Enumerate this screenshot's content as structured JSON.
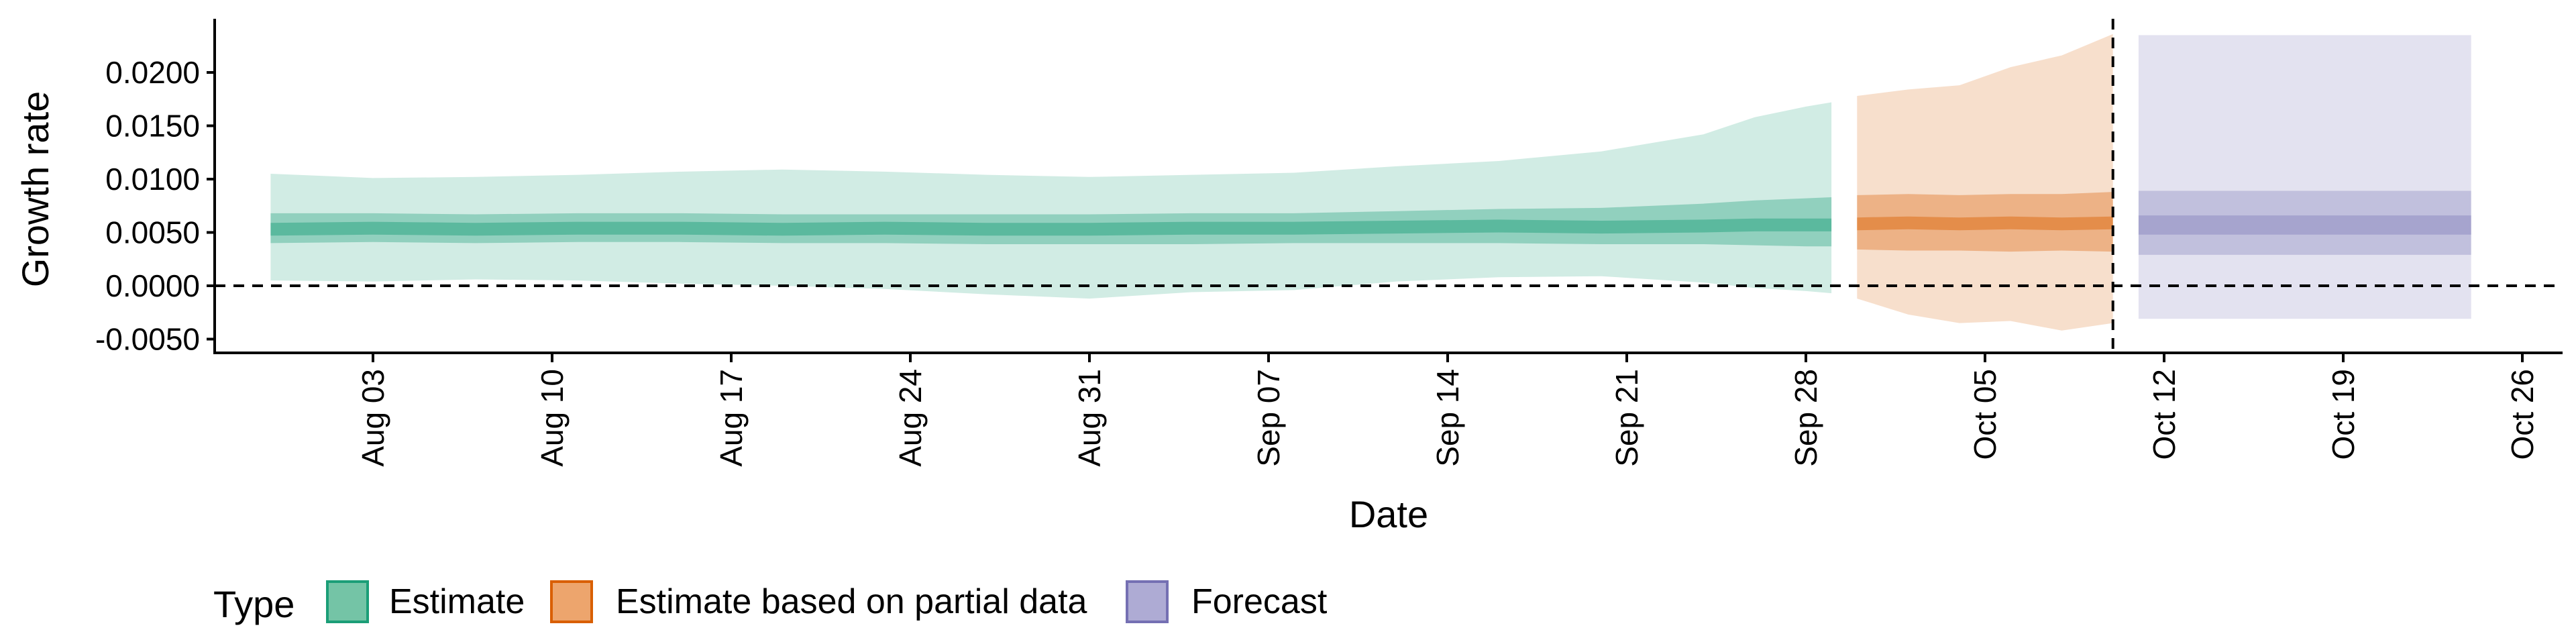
{
  "chart_data": {
    "type": "area",
    "xlabel": "Date",
    "ylabel": "Growth rate",
    "x_axis": {
      "type": "date",
      "range": [
        "2020-07-25",
        "2020-10-28"
      ],
      "ticks": [
        {
          "date": "2020-08-03",
          "label": "Aug 03"
        },
        {
          "date": "2020-08-10",
          "label": "Aug 10"
        },
        {
          "date": "2020-08-17",
          "label": "Aug 17"
        },
        {
          "date": "2020-08-24",
          "label": "Aug 24"
        },
        {
          "date": "2020-08-31",
          "label": "Aug 31"
        },
        {
          "date": "2020-09-07",
          "label": "Sep 07"
        },
        {
          "date": "2020-09-14",
          "label": "Sep 14"
        },
        {
          "date": "2020-09-21",
          "label": "Sep 21"
        },
        {
          "date": "2020-09-28",
          "label": "Sep 28"
        },
        {
          "date": "2020-10-05",
          "label": "Oct 05"
        },
        {
          "date": "2020-10-12",
          "label": "Oct 12"
        },
        {
          "date": "2020-10-19",
          "label": "Oct 19"
        },
        {
          "date": "2020-10-26",
          "label": "Oct 26"
        }
      ]
    },
    "y_axis": {
      "range": [
        -0.0065,
        0.0245
      ],
      "ticks": [
        {
          "value": -0.005,
          "label": "-0.0050"
        },
        {
          "value": 0.0,
          "label": "0.0000"
        },
        {
          "value": 0.005,
          "label": "0.0050"
        },
        {
          "value": 0.01,
          "label": "0.0100"
        },
        {
          "value": 0.015,
          "label": "0.0150"
        },
        {
          "value": 0.02,
          "label": "0.0200"
        }
      ]
    },
    "grid": false,
    "reference_lines": {
      "horizontal_dashed_at": 0,
      "vertical_dashed_at": "2020-10-10"
    },
    "legend": {
      "title": "Type",
      "position": "bottom-left",
      "entries": [
        {
          "label": "Estimate",
          "color": "#1b9e77"
        },
        {
          "label": "Estimate based on partial data",
          "color": "#d95f02"
        },
        {
          "label": "Forecast",
          "color": "#7570b3"
        }
      ]
    },
    "series": [
      {
        "name": "Estimate",
        "color": "#1b9e77",
        "dates": [
          "2020-07-30",
          "2020-08-03",
          "2020-08-07",
          "2020-08-11",
          "2020-08-15",
          "2020-08-19",
          "2020-08-23",
          "2020-08-27",
          "2020-08-31",
          "2020-09-04",
          "2020-09-08",
          "2020-09-12",
          "2020-09-16",
          "2020-09-20",
          "2020-09-24",
          "2020-09-26",
          "2020-09-28",
          "2020-09-29"
        ],
        "median": [
          0.0053,
          0.0054,
          0.0053,
          0.0054,
          0.0054,
          0.0053,
          0.0054,
          0.0053,
          0.0053,
          0.0054,
          0.0054,
          0.0055,
          0.0056,
          0.0055,
          0.0056,
          0.0057,
          0.0057,
          0.0057
        ],
        "lower_50": [
          0.004,
          0.0041,
          0.004,
          0.0041,
          0.0041,
          0.004,
          0.004,
          0.0039,
          0.0039,
          0.0039,
          0.004,
          0.004,
          0.004,
          0.0039,
          0.0039,
          0.0038,
          0.0037,
          0.0037
        ],
        "upper_50": [
          0.0068,
          0.0068,
          0.0067,
          0.0068,
          0.0068,
          0.0067,
          0.0067,
          0.0067,
          0.0067,
          0.0068,
          0.0068,
          0.007,
          0.0072,
          0.0073,
          0.0077,
          0.008,
          0.0082,
          0.0083
        ],
        "lower_90": [
          0.0005,
          0.0004,
          0.0006,
          0.0005,
          0.0002,
          0.0,
          -0.0003,
          -0.0008,
          -0.0012,
          -0.0006,
          -0.0004,
          0.0004,
          0.0008,
          0.0009,
          0.0003,
          -0.0002,
          -0.0005,
          -0.0007
        ],
        "upper_90": [
          0.0105,
          0.0101,
          0.0102,
          0.0104,
          0.0107,
          0.0109,
          0.0107,
          0.0104,
          0.0102,
          0.0104,
          0.0106,
          0.0112,
          0.0117,
          0.0126,
          0.0142,
          0.0158,
          0.0168,
          0.0172
        ]
      },
      {
        "name": "Estimate based on partial data",
        "color": "#d95f02",
        "dates": [
          "2020-09-30",
          "2020-10-02",
          "2020-10-04",
          "2020-10-06",
          "2020-10-08",
          "2020-10-10"
        ],
        "median": [
          0.0058,
          0.0059,
          0.0058,
          0.0059,
          0.0058,
          0.0059
        ],
        "lower_50": [
          0.0034,
          0.0033,
          0.0033,
          0.0032,
          0.0033,
          0.0032
        ],
        "upper_50": [
          0.0085,
          0.0086,
          0.0085,
          0.0086,
          0.0086,
          0.0088
        ],
        "lower_90": [
          -0.0012,
          -0.0027,
          -0.0035,
          -0.0033,
          -0.0042,
          -0.0035
        ],
        "upper_90": [
          0.0178,
          0.0184,
          0.0188,
          0.0205,
          0.0216,
          0.0236
        ]
      },
      {
        "name": "Forecast",
        "color": "#7570b3",
        "dates": [
          "2020-10-11",
          "2020-10-24"
        ],
        "median": [
          0.0058,
          0.0058
        ],
        "lower_50": [
          0.0048,
          0.0048
        ],
        "upper_50": [
          0.0066,
          0.0066
        ],
        "lower_25": [
          0.0048,
          0.0048
        ],
        "upper_25": [
          0.0066,
          0.0066
        ],
        "lower_50_band": [
          0.0029,
          0.0029
        ],
        "upper_50_band": [
          0.0089,
          0.0089
        ],
        "lower_90": [
          -0.0031,
          -0.0031
        ],
        "upper_90": [
          0.0235,
          0.0235
        ]
      }
    ]
  }
}
